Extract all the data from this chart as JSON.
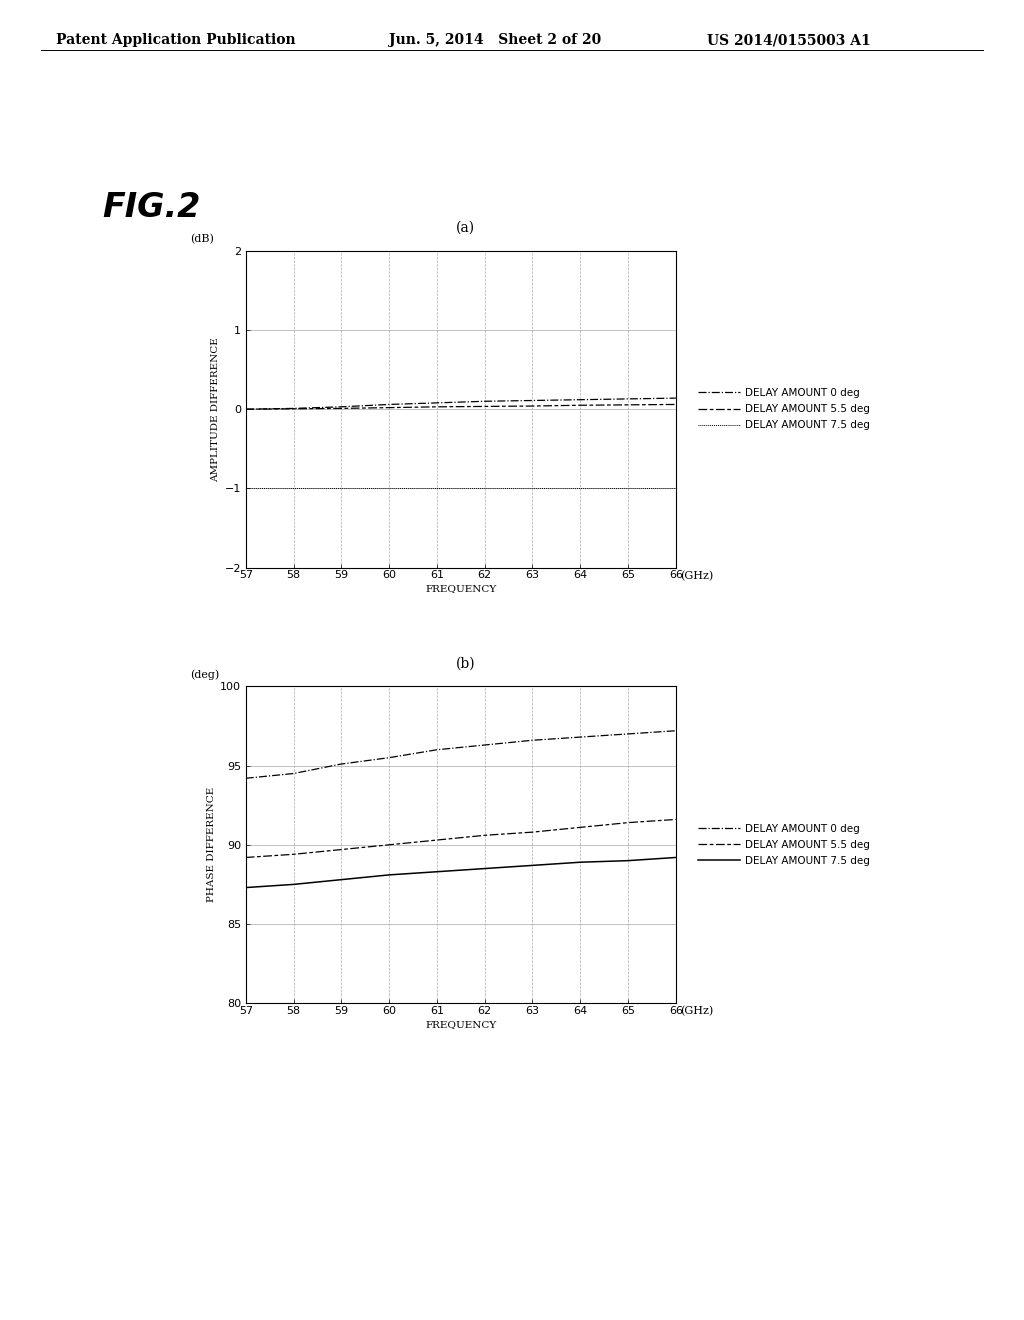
{
  "header_left": "Patent Application Publication",
  "header_mid": "Jun. 5, 2014   Sheet 2 of 20",
  "header_right": "US 2014/0155003 A1",
  "fig_label": "FIG.2",
  "subplot_a_title": "(a)",
  "subplot_b_title": "(b)",
  "freq": [
    57,
    58,
    59,
    60,
    61,
    62,
    63,
    64,
    65,
    66
  ],
  "amp_0deg": [
    0.0,
    0.01,
    0.03,
    0.06,
    0.08,
    0.1,
    0.11,
    0.12,
    0.13,
    0.14
  ],
  "amp_55deg": [
    0.0,
    0.005,
    0.01,
    0.02,
    0.03,
    0.035,
    0.04,
    0.05,
    0.055,
    0.06
  ],
  "amp_75deg": [
    -1.0,
    -1.0,
    -1.0,
    -1.0,
    -1.0,
    -1.0,
    -1.0,
    -1.0,
    -1.0,
    -1.0
  ],
  "phase_0deg": [
    94.2,
    94.5,
    95.1,
    95.5,
    96.0,
    96.3,
    96.6,
    96.8,
    97.0,
    97.2
  ],
  "phase_55deg": [
    89.2,
    89.4,
    89.7,
    90.0,
    90.3,
    90.6,
    90.8,
    91.1,
    91.4,
    91.6
  ],
  "phase_75deg": [
    87.3,
    87.5,
    87.8,
    88.1,
    88.3,
    88.5,
    88.7,
    88.9,
    89.0,
    89.2
  ],
  "ylabel_a": "AMPLITUDE DIFFERENCE",
  "ylabel_b": "PHASE DIFFERENCE",
  "xlabel": "FREQUENCY",
  "unit_a": "(dB)",
  "unit_b": "(deg)",
  "unit_x": "(GHz)",
  "ylim_a": [
    -2,
    2
  ],
  "ylim_b": [
    80,
    100
  ],
  "yticks_a": [
    -2,
    -1,
    0,
    1,
    2
  ],
  "yticks_b": [
    80,
    85,
    90,
    95,
    100
  ],
  "xticks": [
    57,
    58,
    59,
    60,
    61,
    62,
    63,
    64,
    65,
    66
  ],
  "legend_0deg": "DELAY AMOUNT 0 deg",
  "legend_55deg": "DELAY AMOUNT 5.5 deg",
  "legend_75deg": "DELAY AMOUNT 7.5 deg",
  "bg_color": "#ffffff",
  "grid_color": "#aaaaaa",
  "header_fontsize": 10,
  "fig_label_fontsize": 24,
  "axis_label_fontsize": 7.5,
  "tick_fontsize": 8,
  "legend_fontsize": 7.5,
  "title_fontsize": 10,
  "unit_fontsize": 8
}
